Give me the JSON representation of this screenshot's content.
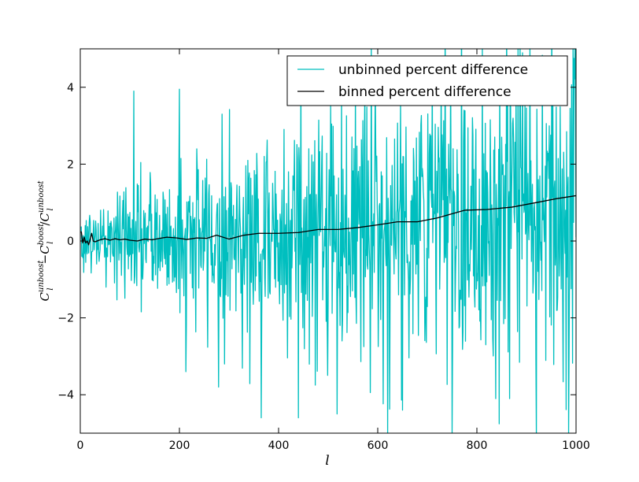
{
  "chart_data": {
    "type": "line",
    "title": "",
    "xlabel": "l",
    "ylabel": "(C_l^unboost − C_l^boost) / C_l^unboost",
    "ylabel_parts": {
      "c1": "C",
      "sub1": "l",
      "sup1": "unboost",
      "minus": "−",
      "c2": "C",
      "sub2": "l",
      "sup2": "boost",
      "slash": "/",
      "c3": "C",
      "sub3": "l",
      "sup3": "unboost"
    },
    "xlim": [
      0,
      1000
    ],
    "ylim": [
      -5,
      5
    ],
    "xticks": [
      0,
      200,
      400,
      600,
      800,
      1000
    ],
    "xtick_labels": [
      "0",
      "200",
      "400",
      "600",
      "800",
      "1000"
    ],
    "yticks": [
      -4,
      -2,
      0,
      2,
      4
    ],
    "ytick_labels": [
      "−4",
      "−2",
      "0",
      "2",
      "4"
    ],
    "grid": false,
    "legend_position": "top-right",
    "series": [
      {
        "name": "unbinned percent difference",
        "color": "#00bfbf",
        "style": "noisy",
        "n_points": 999,
        "x_start": 2,
        "x_end": 1000,
        "trend_x": [
          0,
          200,
          400,
          600,
          800,
          1000
        ],
        "trend_y": [
          0,
          0.05,
          0.2,
          0.45,
          0.8,
          1.15
        ],
        "spread_x": [
          0,
          200,
          400,
          600,
          800,
          1000
        ],
        "spread_sd": [
          0.4,
          1.05,
          1.5,
          1.85,
          2.15,
          2.35
        ],
        "extremes": [
          {
            "x": 108,
            "y": 3.9
          },
          {
            "x": 200,
            "y": 3.95
          },
          {
            "x": 213,
            "y": -3.4
          },
          {
            "x": 279,
            "y": -3.8
          },
          {
            "x": 365,
            "y": -4.6
          },
          {
            "x": 440,
            "y": -4.6
          },
          {
            "x": 518,
            "y": -4.5
          },
          {
            "x": 620,
            "y": -5.0
          },
          {
            "x": 650,
            "y": -4.4
          },
          {
            "x": 750,
            "y": -5.0
          },
          {
            "x": 838,
            "y": -4.1
          },
          {
            "x": 866,
            "y": -4.1
          },
          {
            "x": 985,
            "y": -5.0
          }
        ]
      },
      {
        "name": "binned percent difference",
        "color": "#000000",
        "style": "line",
        "x": [
          2,
          5,
          8,
          11,
          14,
          17,
          20,
          23,
          26,
          30,
          40,
          50,
          60,
          70,
          80,
          90,
          100,
          115,
          130,
          145,
          160,
          175,
          195,
          215,
          235,
          255,
          275,
          300,
          330,
          360,
          400,
          440,
          480,
          520,
          560,
          600,
          640,
          680,
          720,
          775,
          820,
          870,
          920,
          960,
          1000
        ],
        "y": [
          0.25,
          -0.05,
          0.1,
          -0.05,
          0.0,
          -0.1,
          0.05,
          0.2,
          0.0,
          -0.02,
          0.03,
          0.06,
          0.02,
          0.06,
          0.03,
          0.05,
          0.02,
          0.0,
          0.05,
          0.03,
          0.07,
          0.1,
          0.08,
          0.04,
          0.08,
          0.07,
          0.15,
          0.05,
          0.15,
          0.2,
          0.2,
          0.22,
          0.3,
          0.3,
          0.35,
          0.42,
          0.5,
          0.5,
          0.6,
          0.8,
          0.82,
          0.88,
          1.0,
          1.1,
          1.18
        ]
      }
    ]
  }
}
